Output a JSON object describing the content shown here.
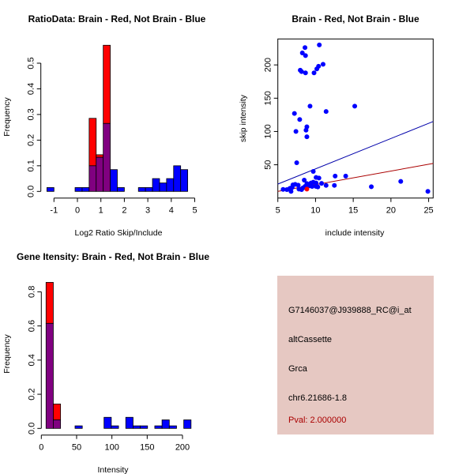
{
  "colors": {
    "red": "#ff0000",
    "blue": "#0000ff",
    "overlap": "#800080",
    "info_bg": "#e6c8c2",
    "pval": "#aa0000"
  },
  "chart_data": [
    {
      "type": "bar",
      "title": "RatioData: Brain - Red, Not Brain - Blue",
      "xlabel": "Log2 Ratio Skip/Include",
      "ylabel": "Frequency",
      "xlim": [
        -1.3,
        4.7
      ],
      "ylim": [
        0,
        0.57
      ],
      "xticks": [
        -1,
        0,
        1,
        2,
        3,
        4,
        5
      ],
      "yticks": [
        "0.0",
        "0.1",
        "0.2",
        "0.3",
        "0.4",
        "0.5"
      ],
      "bin_start": -1.3,
      "bin_width": 0.3,
      "series": [
        {
          "name": "Brain",
          "color": "red",
          "values": [
            0,
            0,
            0,
            0,
            0,
            0,
            0.285,
            0.143,
            0.57,
            0,
            0,
            0,
            0,
            0,
            0,
            0,
            0,
            0,
            0,
            0
          ]
        },
        {
          "name": "Not Brain",
          "color": "blue",
          "values": [
            0.015,
            0,
            0,
            0,
            0.015,
            0.015,
            0.1,
            0.133,
            0.265,
            0.085,
            0.015,
            0,
            0,
            0.015,
            0.015,
            0.05,
            0.033,
            0.05,
            0.1,
            0.085
          ]
        }
      ]
    },
    {
      "type": "scatter",
      "title": "Brain - Red, Not Brain - Blue",
      "xlabel": "include intensity",
      "ylabel": "skip intensity",
      "xlim": [
        5,
        25.6
      ],
      "ylim": [
        0,
        239
      ],
      "xticks": [
        5,
        10,
        15,
        20,
        25
      ],
      "yticks": [
        50,
        100,
        150,
        200
      ],
      "series": [
        {
          "name": "Not Brain",
          "color": "blue",
          "points": [
            [
              8.6,
              226
            ],
            [
              10.5,
              230
            ],
            [
              8.25,
              218
            ],
            [
              8.67,
              214
            ],
            [
              7.97,
              192
            ],
            [
              8.15,
              190
            ],
            [
              8.67,
              188
            ],
            [
              9.8,
              188
            ],
            [
              10.17,
              194
            ],
            [
              10.4,
              198
            ],
            [
              11.0,
              201
            ],
            [
              9.27,
              138
            ],
            [
              15.2,
              138
            ],
            [
              11.4,
              130
            ],
            [
              7.2,
              127
            ],
            [
              7.9,
              118
            ],
            [
              8.85,
              107
            ],
            [
              8.74,
              102
            ],
            [
              7.4,
              100
            ],
            [
              8.85,
              92
            ],
            [
              7.5,
              53
            ],
            [
              9.7,
              40
            ],
            [
              10.07,
              31
            ],
            [
              10.45,
              30
            ],
            [
              12.6,
              33
            ],
            [
              14.0,
              33
            ],
            [
              8.5,
              27
            ],
            [
              21.3,
              25
            ],
            [
              5.7,
              13
            ],
            [
              6.75,
              10
            ],
            [
              24.9,
              10
            ],
            [
              17.4,
              17
            ],
            [
              11.4,
              19
            ],
            [
              12.5,
              19
            ],
            [
              6.2,
              12.7
            ],
            [
              6.6,
              14.7
            ],
            [
              7.0,
              19.8
            ],
            [
              7.3,
              20.6
            ],
            [
              7.7,
              19.4
            ],
            [
              6.9,
              15.9
            ],
            [
              7.8,
              13.5
            ],
            [
              8.15,
              12.7
            ],
            [
              8.3,
              15
            ],
            [
              8.6,
              17.5
            ],
            [
              8.85,
              21.8
            ],
            [
              9.4,
              22.6
            ],
            [
              9.7,
              23.8
            ],
            [
              10.07,
              22.6
            ],
            [
              9.55,
              17.5
            ],
            [
              10.07,
              17.5
            ],
            [
              10.3,
              16.7
            ],
            [
              10.8,
              22
            ],
            [
              9.2,
              18.3
            ]
          ]
        },
        {
          "name": "Brain",
          "color": "red",
          "points": [
            [
              8.85,
              13.5
            ]
          ]
        }
      ],
      "lines": [
        {
          "name": "Not Brain fit",
          "color": "#0000aa",
          "from": [
            5,
            21
          ],
          "to": [
            25.6,
            115
          ]
        },
        {
          "name": "Brain fit",
          "color": "#aa0000",
          "from": [
            5,
            10
          ],
          "to": [
            25.6,
            52
          ]
        }
      ]
    },
    {
      "type": "bar",
      "title": "Gene Itensity: Brain - Red, Not Brain - Blue",
      "xlabel": "Intensity",
      "ylabel": "Frequency",
      "xlim": [
        6.7,
        212
      ],
      "ylim": [
        0,
        0.855
      ],
      "xticks": [
        0,
        50,
        100,
        150,
        200
      ],
      "yticks": [
        "0.0",
        "0.2",
        "0.4",
        "0.6",
        "0.8"
      ],
      "bin_start": 6.7,
      "bin_width": 10.27,
      "series": [
        {
          "name": "Brain",
          "color": "red",
          "values": [
            0.855,
            0.143,
            0,
            0,
            0,
            0,
            0,
            0,
            0,
            0,
            0,
            0,
            0,
            0,
            0,
            0,
            0,
            0,
            0,
            0
          ]
        },
        {
          "name": "Not Brain",
          "color": "blue",
          "values": [
            0.615,
            0.05,
            0,
            0,
            0.015,
            0,
            0,
            0,
            0.065,
            0.015,
            0,
            0.065,
            0.015,
            0.015,
            0,
            0.015,
            0.05,
            0.015,
            0,
            0.05
          ]
        }
      ]
    }
  ],
  "info": {
    "probe": "G7146037@J939888_RC@i_at",
    "event_type": "altCassette",
    "gene": "Grca",
    "location": "chr6.21686-1.8",
    "pval": "Pval: 2.000000"
  }
}
